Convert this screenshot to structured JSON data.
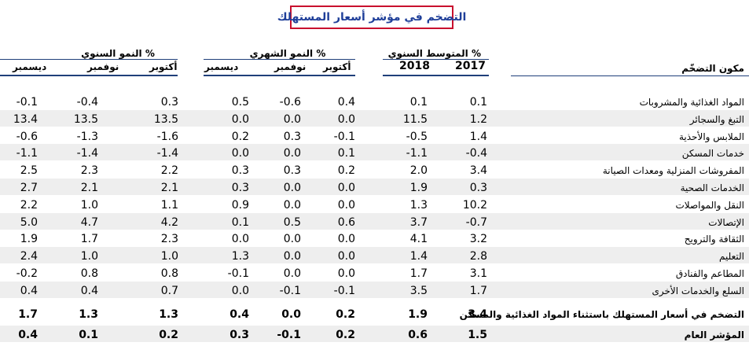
{
  "title": "التضخم في مؤشر أسعار المستهلك",
  "groups": {
    "annual_growth": "% النمو السنوي",
    "monthly_growth": "% النمو الشهري",
    "annual_average": "% المتوسط السنوي"
  },
  "headers": {
    "ag_oct": "أكتوبر",
    "ag_nov": "نوفمبر",
    "ag_dec": "ديسمبر",
    "mg_oct": "أكتوبر",
    "mg_nov": "نوفمبر",
    "mg_dec": "ديسمبر",
    "avg_2018": "2018",
    "avg_2017": "2017",
    "component": "مكون التضخّم"
  },
  "rows": [
    {
      "label": "المواد الغذائية والمشروبات",
      "ag_dec": "-0.1",
      "ag_nov": "-0.4",
      "ag_oct": "0.3",
      "mg_dec": "0.5",
      "mg_nov": "-0.6",
      "mg_oct": "0.4",
      "avg_2018": "0.1",
      "avg_2017": "0.1",
      "shaded": false
    },
    {
      "label": "التبغ والسجائر",
      "ag_dec": "13.4",
      "ag_nov": "13.5",
      "ag_oct": "13.5",
      "mg_dec": "0.0",
      "mg_nov": "0.0",
      "mg_oct": "0.0",
      "avg_2018": "11.5",
      "avg_2017": "1.2",
      "shaded": true
    },
    {
      "label": "الملابس والأحذية",
      "ag_dec": "-0.6",
      "ag_nov": "-1.3",
      "ag_oct": "-1.6",
      "mg_dec": "0.2",
      "mg_nov": "0.3",
      "mg_oct": "-0.1",
      "avg_2018": "-0.5",
      "avg_2017": "1.4",
      "shaded": false
    },
    {
      "label": "خدمات المسكن",
      "ag_dec": "-1.1",
      "ag_nov": "-1.4",
      "ag_oct": "-1.4",
      "mg_dec": "0.0",
      "mg_nov": "0.0",
      "mg_oct": "0.1",
      "avg_2018": "-1.1",
      "avg_2017": "-0.4",
      "shaded": true
    },
    {
      "label": "المفروشات المنزلية ومعدات الصيانة",
      "ag_dec": "2.5",
      "ag_nov": "2.3",
      "ag_oct": "2.2",
      "mg_dec": "0.3",
      "mg_nov": "0.3",
      "mg_oct": "0.2",
      "avg_2018": "2.0",
      "avg_2017": "3.4",
      "shaded": false
    },
    {
      "label": "الخدمات الصحية",
      "ag_dec": "2.7",
      "ag_nov": "2.1",
      "ag_oct": "2.1",
      "mg_dec": "0.3",
      "mg_nov": "0.0",
      "mg_oct": "0.0",
      "avg_2018": "1.9",
      "avg_2017": "0.3",
      "shaded": true
    },
    {
      "label": "النقل والمواصلات",
      "ag_dec": "2.2",
      "ag_nov": "1.0",
      "ag_oct": "1.1",
      "mg_dec": "0.9",
      "mg_nov": "0.0",
      "mg_oct": "0.0",
      "avg_2018": "1.3",
      "avg_2017": "10.2",
      "shaded": false
    },
    {
      "label": "الإتصالات",
      "ag_dec": "5.0",
      "ag_nov": "4.7",
      "ag_oct": "4.2",
      "mg_dec": "0.1",
      "mg_nov": "0.5",
      "mg_oct": "0.6",
      "avg_2018": "3.7",
      "avg_2017": "-0.7",
      "shaded": true
    },
    {
      "label": "الثقافة والترويح",
      "ag_dec": "1.9",
      "ag_nov": "1.7",
      "ag_oct": "2.3",
      "mg_dec": "0.0",
      "mg_nov": "0.0",
      "mg_oct": "0.0",
      "avg_2018": "4.1",
      "avg_2017": "3.2",
      "shaded": false
    },
    {
      "label": "التعليم",
      "ag_dec": "2.4",
      "ag_nov": "1.0",
      "ag_oct": "1.0",
      "mg_dec": "1.3",
      "mg_nov": "0.0",
      "mg_oct": "0.0",
      "avg_2018": "1.4",
      "avg_2017": "2.8",
      "shaded": true
    },
    {
      "label": "المطاعم والفنادق",
      "ag_dec": "-0.2",
      "ag_nov": "0.8",
      "ag_oct": "0.8",
      "mg_dec": "-0.1",
      "mg_nov": "0.0",
      "mg_oct": "0.0",
      "avg_2018": "1.7",
      "avg_2017": "3.1",
      "shaded": false
    },
    {
      "label": "السلع والخدمات الأخرى",
      "ag_dec": "0.4",
      "ag_nov": "0.4",
      "ag_oct": "0.7",
      "mg_dec": "0.0",
      "mg_nov": "-0.1",
      "mg_oct": "-0.1",
      "avg_2018": "3.5",
      "avg_2017": "1.7",
      "shaded": true
    }
  ],
  "summary_rows": [
    {
      "label": "التضخم في أسعار المستهلك باستثناء المواد الغذائية والمسكن",
      "ag_dec": "1.7",
      "ag_nov": "1.3",
      "ag_oct": "1.3",
      "mg_dec": "0.4",
      "mg_nov": "0.0",
      "mg_oct": "0.2",
      "avg_2018": "1.9",
      "avg_2017": "3.4",
      "shaded": false
    },
    {
      "label": "المؤشر العام",
      "ag_dec": "0.4",
      "ag_nov": "0.1",
      "ag_oct": "0.2",
      "mg_dec": "0.3",
      "mg_nov": "-0.1",
      "mg_oct": "0.2",
      "avg_2018": "0.6",
      "avg_2017": "1.5",
      "shaded": true
    }
  ],
  "colors": {
    "title_text": "#1f3f99",
    "title_border": "#c8102e",
    "rule": "#1f3f7a",
    "shade": "#eeeeee"
  }
}
